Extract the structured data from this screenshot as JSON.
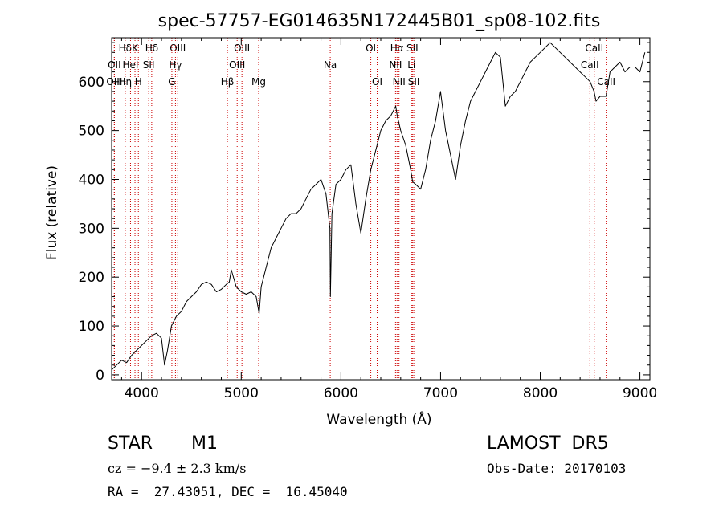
{
  "chart_data": {
    "type": "line",
    "title": "spec-57757-EG014635N172445B01_sp08-102.fits",
    "xlabel": "Wavelength (Å)",
    "ylabel": "Flux (relative)",
    "xlim": [
      3700,
      9100
    ],
    "ylim": [
      -10,
      690
    ],
    "x_ticks": [
      4000,
      5000,
      6000,
      7000,
      8000,
      9000
    ],
    "y_ticks": [
      0,
      100,
      200,
      300,
      400,
      500,
      600
    ],
    "grid": false,
    "line_color": "#000000",
    "marker_color": "#cc0000",
    "series": [
      {
        "x": [
          3700,
          3750,
          3800,
          3850,
          3900,
          3950,
          4000,
          4050,
          4100,
          4150,
          4200,
          4230,
          4260,
          4300,
          4350,
          4400,
          4450,
          4500,
          4550,
          4600,
          4650,
          4700,
          4750,
          4800,
          4850,
          4880,
          4900,
          4950,
          5000,
          5050,
          5100,
          5150,
          5180,
          5200,
          5250,
          5300,
          5350,
          5400,
          5450,
          5500,
          5550,
          5600,
          5650,
          5700,
          5750,
          5800,
          5850,
          5890,
          5895,
          5910,
          5950,
          6000,
          6050,
          6100,
          6150,
          6200,
          6250,
          6300,
          6350,
          6400,
          6450,
          6500,
          6550,
          6565,
          6600,
          6650,
          6700,
          6720,
          6750,
          6800,
          6850,
          6900,
          6950,
          7000,
          7050,
          7100,
          7150,
          7200,
          7250,
          7300,
          7350,
          7400,
          7450,
          7500,
          7550,
          7600,
          7650,
          7700,
          7750,
          7800,
          7850,
          7900,
          7950,
          8000,
          8050,
          8100,
          8150,
          8200,
          8250,
          8300,
          8350,
          8400,
          8450,
          8500,
          8540,
          8560,
          8600,
          8660,
          8700,
          8750,
          8800,
          8850,
          8900,
          8950,
          9000,
          9050
        ],
        "y": [
          10,
          20,
          30,
          25,
          40,
          50,
          60,
          70,
          80,
          85,
          75,
          20,
          50,
          100,
          120,
          130,
          150,
          160,
          170,
          185,
          190,
          185,
          170,
          175,
          185,
          190,
          215,
          180,
          170,
          165,
          170,
          160,
          125,
          180,
          220,
          260,
          280,
          300,
          320,
          330,
          330,
          340,
          360,
          380,
          390,
          400,
          370,
          300,
          160,
          330,
          390,
          400,
          420,
          430,
          350,
          290,
          360,
          420,
          460,
          500,
          520,
          530,
          550,
          530,
          500,
          470,
          420,
          395,
          390,
          380,
          420,
          480,
          520,
          580,
          500,
          450,
          400,
          470,
          520,
          560,
          580,
          600,
          620,
          640,
          660,
          650,
          550,
          570,
          580,
          600,
          620,
          640,
          650,
          660,
          670,
          680,
          670,
          660,
          650,
          640,
          630,
          620,
          610,
          600,
          580,
          560,
          570,
          570,
          620,
          630,
          640,
          620,
          630,
          630,
          620,
          660
        ]
      }
    ],
    "lines": [
      {
        "label": "Hδ",
        "x": 3835,
        "row": 0
      },
      {
        "label": "K",
        "x": 3934,
        "row": 0
      },
      {
        "label": "Hδ",
        "x": 4102,
        "row": 0
      },
      {
        "label": "OIII",
        "x": 4363,
        "row": 0
      },
      {
        "label": "OIII",
        "x": 5007,
        "row": 0
      },
      {
        "label": "OI",
        "x": 6300,
        "row": 0
      },
      {
        "label": "Hα",
        "x": 6563,
        "row": 0
      },
      {
        "label": "SII",
        "x": 6717,
        "row": 0
      },
      {
        "label": "CaII",
        "x": 8542,
        "row": 0
      },
      {
        "label": "OII",
        "x": 3727,
        "row": 1
      },
      {
        "label": "HeI",
        "x": 3889,
        "row": 1
      },
      {
        "label": "SII",
        "x": 4072,
        "row": 1
      },
      {
        "label": "Hγ",
        "x": 4340,
        "row": 1
      },
      {
        "label": "OIII",
        "x": 4959,
        "row": 1
      },
      {
        "label": "Na",
        "x": 5893,
        "row": 1
      },
      {
        "label": "NII",
        "x": 6548,
        "row": 1
      },
      {
        "label": "Li",
        "x": 6708,
        "row": 1
      },
      {
        "label": "CaII",
        "x": 8498,
        "row": 1
      },
      {
        "label": "OIII",
        "x": 3727,
        "row": 2
      },
      {
        "label": "Hη",
        "x": 3835,
        "row": 2
      },
      {
        "label": "H",
        "x": 3968,
        "row": 2
      },
      {
        "label": "G",
        "x": 4304,
        "row": 2
      },
      {
        "label": "Hβ",
        "x": 4861,
        "row": 2
      },
      {
        "label": "Mg",
        "x": 5175,
        "row": 2
      },
      {
        "label": "OI",
        "x": 6364,
        "row": 2
      },
      {
        "label": "NII",
        "x": 6583,
        "row": 2
      },
      {
        "label": "SII",
        "x": 6731,
        "row": 2
      },
      {
        "label": "CaII",
        "x": 8662,
        "row": 2
      }
    ]
  },
  "info": {
    "object_class": "STAR",
    "subclass": "M1",
    "survey": "LAMOST  DR5",
    "redshift": "cz = −9.4 ± 2.3 km/s",
    "obs_date": "Obs-Date: 20170103",
    "coords": "RA =  27.43051, DEC =  16.45040"
  }
}
